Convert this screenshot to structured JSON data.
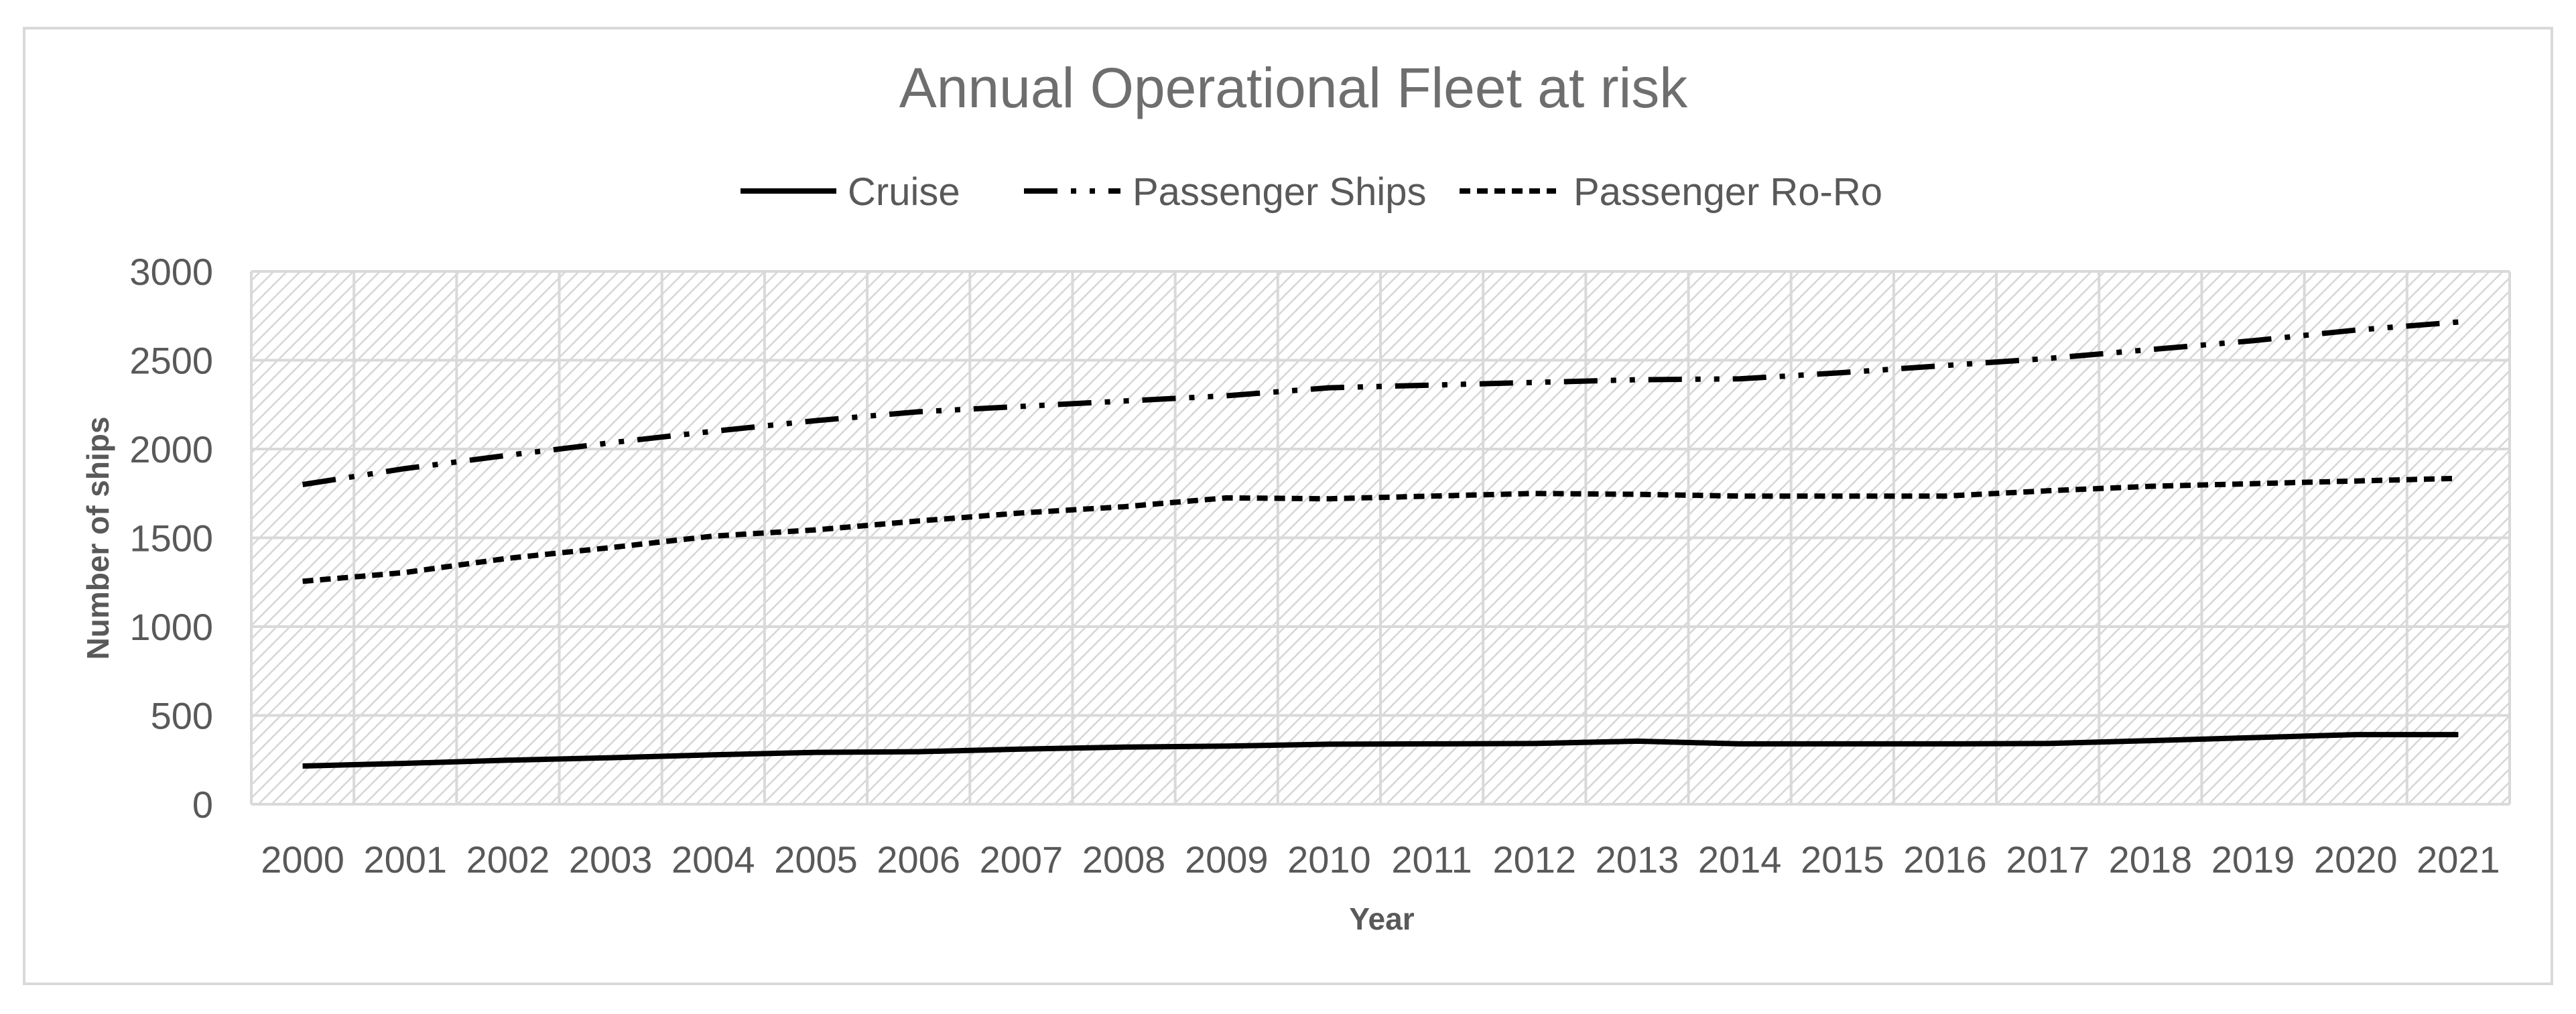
{
  "chart_data": {
    "type": "line",
    "title": "Annual Operational Fleet at risk",
    "xlabel": "Year",
    "ylabel": "Number of ships",
    "x": [
      "2000",
      "2001",
      "2002",
      "2003",
      "2004",
      "2005",
      "2006",
      "2007",
      "2008",
      "2009",
      "2010",
      "2011",
      "2012",
      "2013",
      "2014",
      "2015",
      "2016",
      "2017",
      "2018",
      "2019",
      "2020",
      "2021"
    ],
    "yticks": [
      "0",
      "500",
      "1000",
      "1500",
      "2000",
      "2500",
      "3000"
    ],
    "ylim": [
      0,
      3000
    ],
    "grid": true,
    "legend_position": "top",
    "series": [
      {
        "name": "Cruise",
        "style": "solid",
        "color": "#000000",
        "values": [
          215,
          230,
          248,
          262,
          278,
          292,
          296,
          310,
          322,
          327,
          338,
          340,
          342,
          355,
          340,
          340,
          340,
          342,
          358,
          375,
          392,
          392
        ]
      },
      {
        "name": "Passenger Ships",
        "style": "dash-dot-dot",
        "color": "#000000",
        "values": [
          1800,
          1890,
          1965,
          2035,
          2100,
          2160,
          2210,
          2240,
          2270,
          2300,
          2345,
          2360,
          2375,
          2390,
          2395,
          2430,
          2470,
          2510,
          2560,
          2610,
          2670,
          2715
        ]
      },
      {
        "name": "Passenger Ro-Ro",
        "style": "dashed",
        "color": "#000000",
        "values": [
          1255,
          1305,
          1385,
          1445,
          1510,
          1545,
          1595,
          1640,
          1675,
          1725,
          1720,
          1735,
          1750,
          1745,
          1735,
          1735,
          1735,
          1765,
          1790,
          1805,
          1820,
          1835
        ]
      }
    ]
  }
}
